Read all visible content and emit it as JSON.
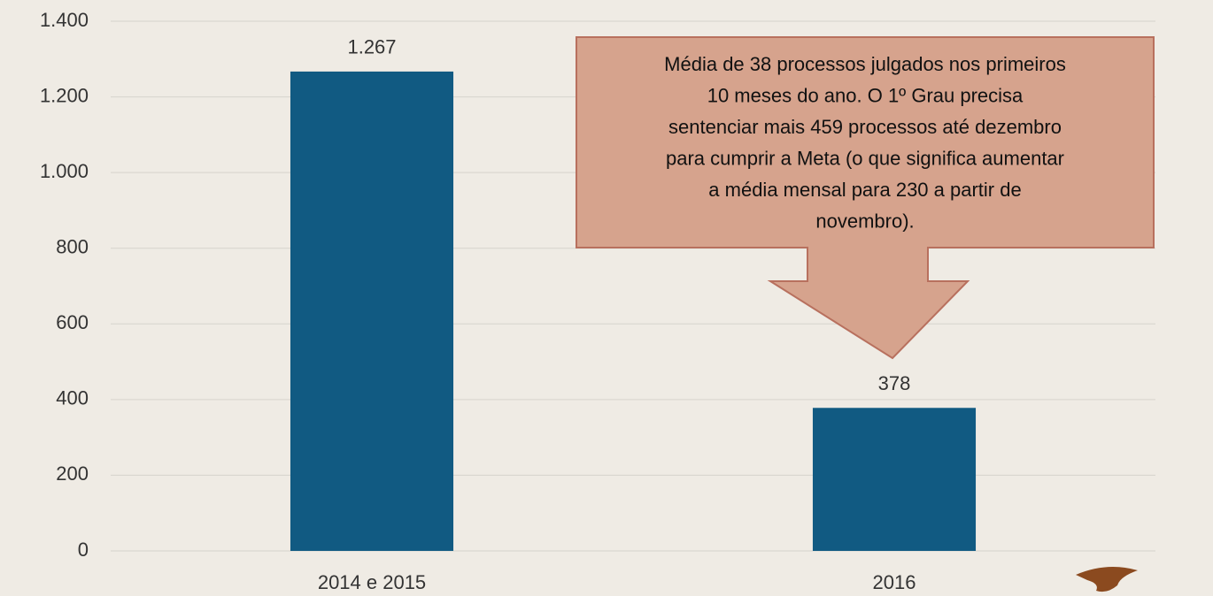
{
  "chart_data": {
    "type": "bar",
    "categories": [
      "2014 e 2015",
      "2016"
    ],
    "values": [
      1267,
      378
    ],
    "value_labels": [
      "1.267",
      "378"
    ],
    "color": "#115a82",
    "ylim": [
      0,
      1400
    ],
    "yticks": [
      0,
      200,
      400,
      600,
      800,
      {
        "value": 1000,
        "label": "1.000"
      },
      {
        "value": 1200,
        "label": "1.200"
      },
      {
        "value": 1400,
        "label": "1.400"
      }
    ],
    "grid": true,
    "annotation": [
      "Média de 38 processos julgados nos primeiros",
      "10 meses do ano. O 1º Grau precisa",
      "sentenciar mais 459 processos até dezembro",
      "para cumprir a Meta (o que significa aumentar",
      "a média mensal para 230 a partir de",
      "novembro)."
    ]
  }
}
